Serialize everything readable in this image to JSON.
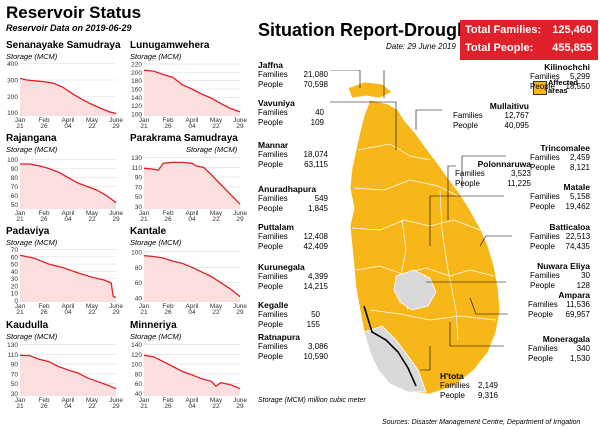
{
  "left_title": "Reservoir Status",
  "left_subtitle": "Reservoir Data on 2019-06-29",
  "unit_label": "Storage (MCM)",
  "x_ticks": [
    "Jan 21",
    "Feb 26",
    "April 04",
    "May 22",
    "June 29"
  ],
  "chart_data": [
    {
      "type": "line",
      "title": "Senanayake Samudraya",
      "ylabel": "Storage (MCM)",
      "yticks": [
        100,
        200,
        300,
        400
      ],
      "ylim": [
        80,
        410
      ],
      "x": [
        "Jan 21",
        "Feb 26",
        "April 04",
        "May 22",
        "June 29"
      ],
      "series": [
        {
          "values": [
            [
              0,
              310
            ],
            [
              0.07,
              300
            ],
            [
              0.15,
              295
            ],
            [
              0.25,
              290
            ],
            [
              0.35,
              280
            ],
            [
              0.45,
              255
            ],
            [
              0.55,
              215
            ],
            [
              0.65,
              180
            ],
            [
              0.75,
              150
            ],
            [
              0.85,
              125
            ],
            [
              0.93,
              105
            ],
            [
              1,
              95
            ]
          ]
        }
      ]
    },
    {
      "type": "line",
      "title": "Lunugamwehera",
      "ylabel": "Storage (MCM)",
      "yticks": [
        100,
        120,
        140,
        160,
        180,
        200,
        220
      ],
      "ylim": [
        95,
        225
      ],
      "x": [
        "Jan 21",
        "Feb 26",
        "April 04",
        "May 22",
        "June 29"
      ],
      "series": [
        {
          "values": [
            [
              0,
              205
            ],
            [
              0.1,
              203
            ],
            [
              0.2,
              195
            ],
            [
              0.3,
              188
            ],
            [
              0.4,
              170
            ],
            [
              0.5,
              160
            ],
            [
              0.6,
              148
            ],
            [
              0.7,
              138
            ],
            [
              0.8,
              125
            ],
            [
              0.9,
              113
            ],
            [
              1,
              105
            ]
          ]
        }
      ]
    },
    {
      "type": "line",
      "title": "Rajangana",
      "ylabel": "Storage (MCM)",
      "yticks": [
        50,
        60,
        70,
        80,
        90,
        100
      ],
      "ylim": [
        45,
        105
      ],
      "x": [
        "Jan 21",
        "Feb 26",
        "April 04",
        "May 22",
        "June 29"
      ],
      "series": [
        {
          "values": [
            [
              0,
              95
            ],
            [
              0.1,
              95
            ],
            [
              0.2,
              93
            ],
            [
              0.3,
              90
            ],
            [
              0.4,
              86
            ],
            [
              0.5,
              80
            ],
            [
              0.6,
              74
            ],
            [
              0.7,
              70
            ],
            [
              0.8,
              66
            ],
            [
              0.9,
              60
            ],
            [
              1,
              52
            ]
          ]
        }
      ]
    },
    {
      "type": "line",
      "title": "Parakrama Samudraya",
      "ylabel": "Storage (MCM)",
      "yticks": [
        30,
        50,
        70,
        90,
        110,
        130
      ],
      "ylim": [
        25,
        135
      ],
      "x": [
        "Jan 21",
        "Feb 26",
        "April 04",
        "May 22",
        "June 29"
      ],
      "series": [
        {
          "values": [
            [
              0,
              108
            ],
            [
              0.1,
              106
            ],
            [
              0.15,
              104
            ],
            [
              0.2,
              118
            ],
            [
              0.3,
              120
            ],
            [
              0.4,
              120
            ],
            [
              0.5,
              118
            ],
            [
              0.55,
              112
            ],
            [
              0.62,
              110
            ],
            [
              0.7,
              95
            ],
            [
              0.8,
              75
            ],
            [
              0.9,
              55
            ],
            [
              1,
              35
            ]
          ]
        }
      ]
    },
    {
      "type": "line",
      "title": "Padaviya",
      "ylabel": "Storage (MCM)",
      "yticks": [
        0,
        10,
        20,
        30,
        40,
        50,
        60,
        70
      ],
      "ylim": [
        -2,
        72
      ],
      "x": [
        "Jan 21",
        "Feb 26",
        "April 04",
        "May 22",
        "June 29"
      ],
      "series": [
        {
          "values": [
            [
              0,
              62
            ],
            [
              0.15,
              58
            ],
            [
              0.3,
              50
            ],
            [
              0.45,
              45
            ],
            [
              0.6,
              38
            ],
            [
              0.75,
              32
            ],
            [
              0.88,
              28
            ],
            [
              0.95,
              24
            ],
            [
              0.97,
              6
            ],
            [
              1,
              4
            ]
          ]
        }
      ]
    },
    {
      "type": "line",
      "title": "Kantale",
      "ylabel": "Storage (MCM)",
      "yticks": [
        40,
        60,
        80,
        100
      ],
      "ylim": [
        35,
        105
      ],
      "x": [
        "Jan 21",
        "Feb 26",
        "April 04",
        "May 22",
        "June 29"
      ],
      "series": [
        {
          "values": [
            [
              0,
              95
            ],
            [
              0.1,
              94
            ],
            [
              0.2,
              92
            ],
            [
              0.3,
              88
            ],
            [
              0.4,
              85
            ],
            [
              0.5,
              80
            ],
            [
              0.6,
              74
            ],
            [
              0.7,
              68
            ],
            [
              0.8,
              60
            ],
            [
              0.9,
              52
            ],
            [
              1,
              42
            ]
          ]
        }
      ]
    },
    {
      "type": "line",
      "title": "Kaudulla",
      "ylabel": "Storage (MCM)",
      "yticks": [
        30,
        50,
        70,
        90,
        110,
        130
      ],
      "ylim": [
        25,
        135
      ],
      "x": [
        "Jan 21",
        "Feb 26",
        "April 04",
        "May 22",
        "June 29"
      ],
      "series": [
        {
          "values": [
            [
              0,
              108
            ],
            [
              0.1,
              107
            ],
            [
              0.2,
              100
            ],
            [
              0.3,
              95
            ],
            [
              0.4,
              85
            ],
            [
              0.5,
              78
            ],
            [
              0.6,
              72
            ],
            [
              0.7,
              62
            ],
            [
              0.8,
              55
            ],
            [
              0.9,
              48
            ],
            [
              1,
              40
            ]
          ]
        }
      ]
    },
    {
      "type": "line",
      "title": "Minneriya",
      "ylabel": "Storage (MCM)",
      "yticks": [
        40,
        60,
        80,
        100,
        120,
        140
      ],
      "ylim": [
        35,
        145
      ],
      "x": [
        "Jan 21",
        "Feb 26",
        "April 04",
        "May 22",
        "June 29"
      ],
      "series": [
        {
          "values": [
            [
              0,
              118
            ],
            [
              0.1,
              115
            ],
            [
              0.2,
              105
            ],
            [
              0.3,
              95
            ],
            [
              0.4,
              85
            ],
            [
              0.5,
              78
            ],
            [
              0.6,
              70
            ],
            [
              0.7,
              65
            ],
            [
              0.75,
              55
            ],
            [
              0.8,
              62
            ],
            [
              0.9,
              58
            ],
            [
              1,
              50
            ]
          ]
        }
      ]
    }
  ],
  "right_title": "Situation Report-Drought",
  "right_date": "Date: 29 June 2019",
  "totals": {
    "families_label": "Total Families:",
    "families_value": "125,460",
    "people_label": "Total People:",
    "people_value": "455,855"
  },
  "legend_label_1": "Affected",
  "legend_label_2": "areas",
  "map_colors": {
    "affected": "#f7b718",
    "border": "#ffffff",
    "outline": "#000000"
  },
  "districts": [
    {
      "name": "Jaffna",
      "families": "21,080",
      "people": "70,598"
    },
    {
      "name": "Vavuniya",
      "families": "40",
      "people": "109"
    },
    {
      "name": "Mannar",
      "families": "18,074",
      "people": "63,115"
    },
    {
      "name": "Anuradhapura",
      "families": "549",
      "people": "1,845"
    },
    {
      "name": "Puttalam",
      "families": "12,408",
      "people": "42,409"
    },
    {
      "name": "Kurunegala",
      "families": "4,399",
      "people": "14,215"
    },
    {
      "name": "Kegalle",
      "families": "50",
      "people": "155"
    },
    {
      "name": "Ratnapura",
      "families": "3,086",
      "people": "10,590"
    },
    {
      "name": "Kilinochchi",
      "families": "5,299",
      "people": "18,550"
    },
    {
      "name": "Mullaitivu",
      "families": "12,767",
      "people": "40,095"
    },
    {
      "name": "Trincomalee",
      "families": "2,459",
      "people": "8,121"
    },
    {
      "name": "Polonnaruwa",
      "families": "3,523",
      "people": "11,225"
    },
    {
      "name": "Matale",
      "families": "5,158",
      "people": "19,462"
    },
    {
      "name": "Batticaloa",
      "families": "22,513",
      "people": "74,435"
    },
    {
      "name": "Nuwara Eliya",
      "families": "30",
      "people": "128"
    },
    {
      "name": "Ampara",
      "families": "11,536",
      "people": "69,957"
    },
    {
      "name": "Moneragala",
      "families": "340",
      "people": "1,530"
    },
    {
      "name": "H'tota",
      "families": "2,149",
      "people": "9,316"
    }
  ],
  "families_label": "Families",
  "people_label": "People",
  "footer_left": "Storage (MCM) million cubic meter",
  "footer_right": "Sources: Disaster Management Centre, Department of Irrigation"
}
